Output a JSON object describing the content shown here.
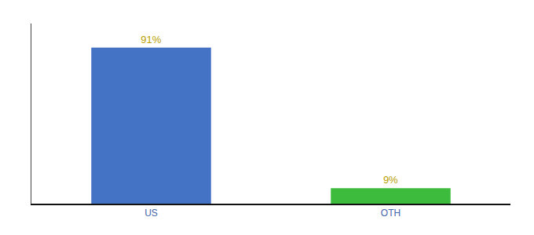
{
  "chart_data": {
    "type": "bar",
    "categories": [
      "US",
      "OTH"
    ],
    "values": [
      91,
      9
    ],
    "value_labels": [
      "91%",
      "9%"
    ],
    "colors": [
      "#4472c4",
      "#3dbb3d"
    ],
    "ylim": [
      0,
      105
    ],
    "data_labels": true,
    "tick_labels": "x",
    "grid": false
  }
}
